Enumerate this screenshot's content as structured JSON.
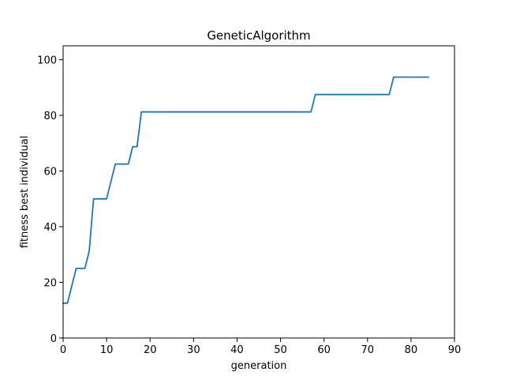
{
  "chart_data": {
    "type": "line",
    "title": "GeneticAlgorithm",
    "xlabel": "generation",
    "ylabel": "fitness best individual",
    "xlim": [
      0,
      90
    ],
    "ylim": [
      0,
      105
    ],
    "xticks": [
      0,
      10,
      20,
      30,
      40,
      50,
      60,
      70,
      80,
      90
    ],
    "yticks": [
      0,
      20,
      40,
      60,
      80,
      100
    ],
    "grid": false,
    "line_color": "#1f77b4",
    "series": [
      {
        "x": [
          0,
          1,
          3,
          5,
          6,
          7,
          10,
          12,
          15,
          16,
          17,
          18,
          57,
          58,
          75,
          76,
          84
        ],
        "y": [
          12.5,
          12.5,
          25.0,
          25.0,
          31.25,
          50.0,
          50.0,
          62.5,
          62.5,
          68.75,
          68.75,
          81.25,
          81.25,
          87.5,
          87.5,
          93.75,
          93.75
        ]
      }
    ]
  }
}
